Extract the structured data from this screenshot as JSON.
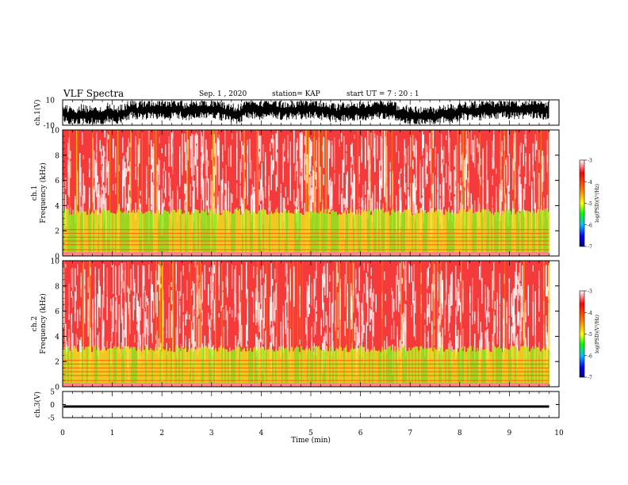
{
  "header": {
    "title": "VLF Spectra",
    "date": "Sep. 1 , 2020",
    "station": "station= KAP",
    "start_ut": "start UT =   7 : 20 : 1"
  },
  "colors": {
    "background": "#ffffff",
    "trace": "#000000",
    "colormap": [
      "#000080",
      "#0000ff",
      "#00c0ff",
      "#00ff00",
      "#ffff00",
      "#ff8000",
      "#ff0000",
      "#ffffff"
    ]
  },
  "chart_data": [
    {
      "type": "line",
      "name": "ch1-waveform",
      "ylabel": "ch.1(V)",
      "ylim": [
        -10,
        10
      ],
      "yticks": [
        "10",
        "-10"
      ],
      "xlim": [
        0,
        10
      ],
      "description_values": "dense waveform fluctuating roughly between -8 and +8 V across 0-9.8 min"
    },
    {
      "type": "heatmap",
      "name": "ch1-spectrogram",
      "ylabel": "ch.1 Frequency (kHz)",
      "ylabel_lines": [
        "ch.1",
        "Frequency (kHz)"
      ],
      "ylim": [
        0,
        10
      ],
      "yticks": [
        "0",
        "2",
        "4",
        "6",
        "8",
        "10"
      ],
      "xlim": [
        0,
        9.8
      ],
      "colorbar": {
        "label": "log(PSD)(V²/Hz)",
        "ticks": [
          "-3",
          "-4",
          "-5",
          "-6",
          "-7"
        ],
        "range": [
          -7,
          -3
        ]
      },
      "dominant_band_khz": [
        0.3,
        3.5
      ],
      "band_level": -4.6,
      "upper_level": -3.6
    },
    {
      "type": "heatmap",
      "name": "ch2-spectrogram",
      "ylabel": "ch.2 Frequency (kHz)",
      "ylabel_lines": [
        "ch.2",
        "Frequency (kHz)"
      ],
      "ylim": [
        0,
        10
      ],
      "yticks": [
        "0",
        "2",
        "4",
        "6",
        "8",
        "10"
      ],
      "xlim": [
        0,
        9.8
      ],
      "colorbar": {
        "label": "log(PSD)(V²/Hz)",
        "ticks": [
          "-3",
          "-4",
          "-5",
          "-6",
          "-7"
        ],
        "range": [
          -7,
          -3
        ]
      },
      "dominant_band_khz": [
        0.3,
        3.0
      ],
      "band_level": -5.0,
      "upper_level": -3.6
    },
    {
      "type": "line",
      "name": "ch3-waveform",
      "ylabel": "ch.3(V)",
      "ylim": [
        -5,
        5
      ],
      "yticks": [
        "5",
        "0",
        "-5"
      ],
      "xlim": [
        0,
        10
      ],
      "band_v": [
        -1.2,
        -0.3
      ]
    },
    {
      "type": "axis",
      "name": "time-axis",
      "xlabel": "Time (min)",
      "xlim": [
        0,
        10
      ],
      "xticks": [
        "0",
        "1",
        "2",
        "3",
        "4",
        "5",
        "6",
        "7",
        "8",
        "9",
        "10"
      ]
    }
  ]
}
